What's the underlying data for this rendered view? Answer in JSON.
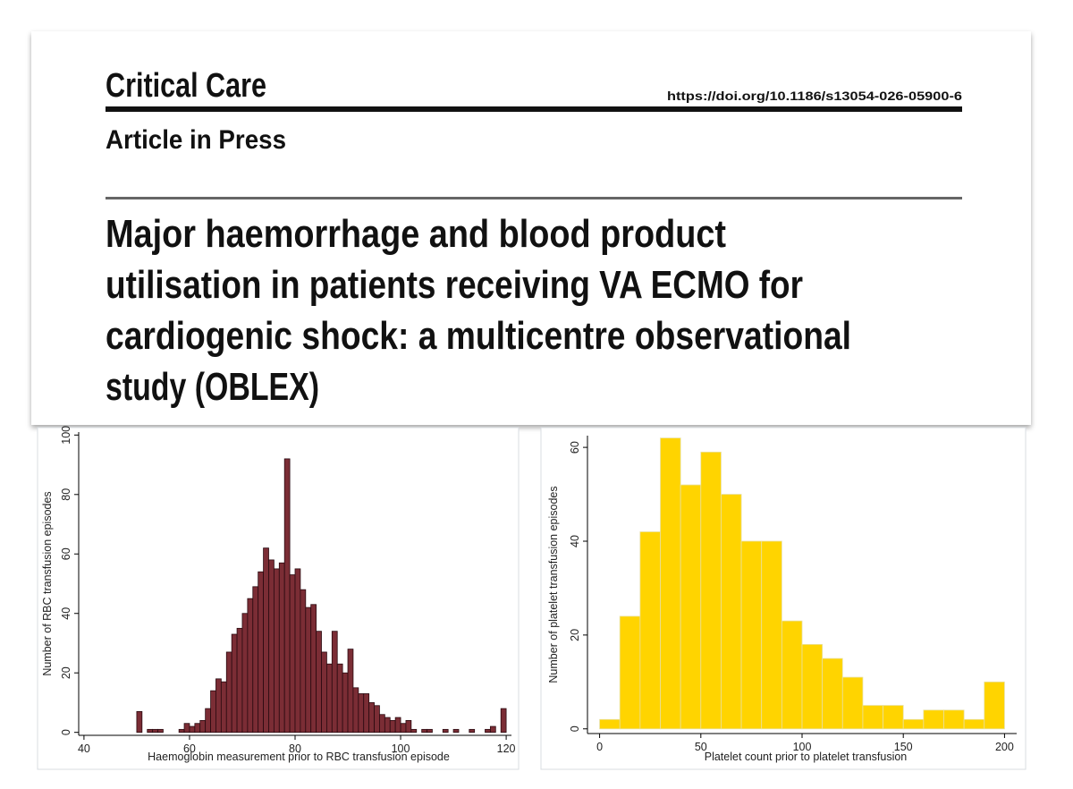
{
  "header": {
    "journal": "Critical Care",
    "doi": "https://doi.org/10.1186/s13054-026-05900-6",
    "status": "Article in Press",
    "title_lines": [
      "Major haemorrhage and blood product",
      "utilisation in patients receiving VA ECMO for",
      "cardiogenic shock: a multicentre observational",
      "study (OBLEX)"
    ]
  },
  "chart_data": [
    {
      "type": "histogram",
      "x_label": "Haemoglobin measurement prior to RBC transfusion episode",
      "y_label": "Number of RBC transfusion episodes",
      "color": "#7b2d35",
      "edge_color": "#2a0a10",
      "bins": [
        40,
        41,
        42,
        43,
        44,
        45,
        46,
        47,
        48,
        49,
        50,
        51,
        52,
        53,
        54,
        55,
        56,
        57,
        58,
        59,
        60,
        61,
        62,
        63,
        64,
        65,
        66,
        67,
        68,
        69,
        70,
        71,
        72,
        73,
        74,
        75,
        76,
        77,
        78,
        79,
        80,
        81,
        82,
        83,
        84,
        85,
        86,
        87,
        88,
        89,
        90,
        91,
        92,
        93,
        94,
        95,
        96,
        97,
        98,
        99,
        100,
        101,
        102,
        103,
        104,
        105,
        106,
        107,
        108,
        109,
        110,
        111,
        112,
        113,
        114,
        115,
        116,
        117,
        118,
        119,
        120
      ],
      "values": [
        0,
        0,
        0,
        0,
        0,
        0,
        0,
        0,
        0,
        0,
        7,
        0,
        1,
        1,
        1,
        0,
        0,
        0,
        1,
        3,
        2,
        3,
        4,
        8,
        14,
        18,
        17,
        27,
        33,
        35,
        40,
        45,
        49,
        54,
        62,
        58,
        55,
        57,
        92,
        53,
        55,
        48,
        42,
        43,
        34,
        27,
        23,
        34,
        23,
        20,
        28,
        15,
        13,
        13,
        10,
        9,
        6,
        5,
        4,
        5,
        3,
        4,
        1,
        0,
        1,
        1,
        0,
        0,
        1,
        0,
        1,
        0,
        0,
        1,
        0,
        0,
        1,
        2,
        0,
        8
      ],
      "xlim": [
        39,
        121
      ],
      "xticks": [
        40,
        60,
        80,
        100,
        120
      ],
      "ylim": [
        -1,
        101
      ],
      "yticks": [
        0,
        20,
        40,
        60,
        80,
        100
      ]
    },
    {
      "type": "histogram",
      "x_label": "Platelet count prior to platelet transfusion",
      "y_label": "Number of platelet transfusion episodes",
      "color": "#ffd400",
      "edge_color": "#e8e0a0",
      "bins": [
        0,
        10,
        20,
        30,
        40,
        50,
        60,
        70,
        80,
        90,
        100,
        110,
        120,
        130,
        140,
        150,
        160,
        170,
        180,
        190,
        200
      ],
      "values": [
        2,
        24,
        42,
        62,
        52,
        59,
        50,
        40,
        40,
        23,
        18,
        15,
        11,
        5,
        5,
        2,
        4,
        4,
        2,
        10
      ],
      "xlim": [
        -6,
        206
      ],
      "xticks": [
        0,
        50,
        100,
        150,
        200
      ],
      "ylim": [
        -1,
        62.5
      ],
      "yticks": [
        0,
        20,
        40,
        60
      ]
    }
  ]
}
